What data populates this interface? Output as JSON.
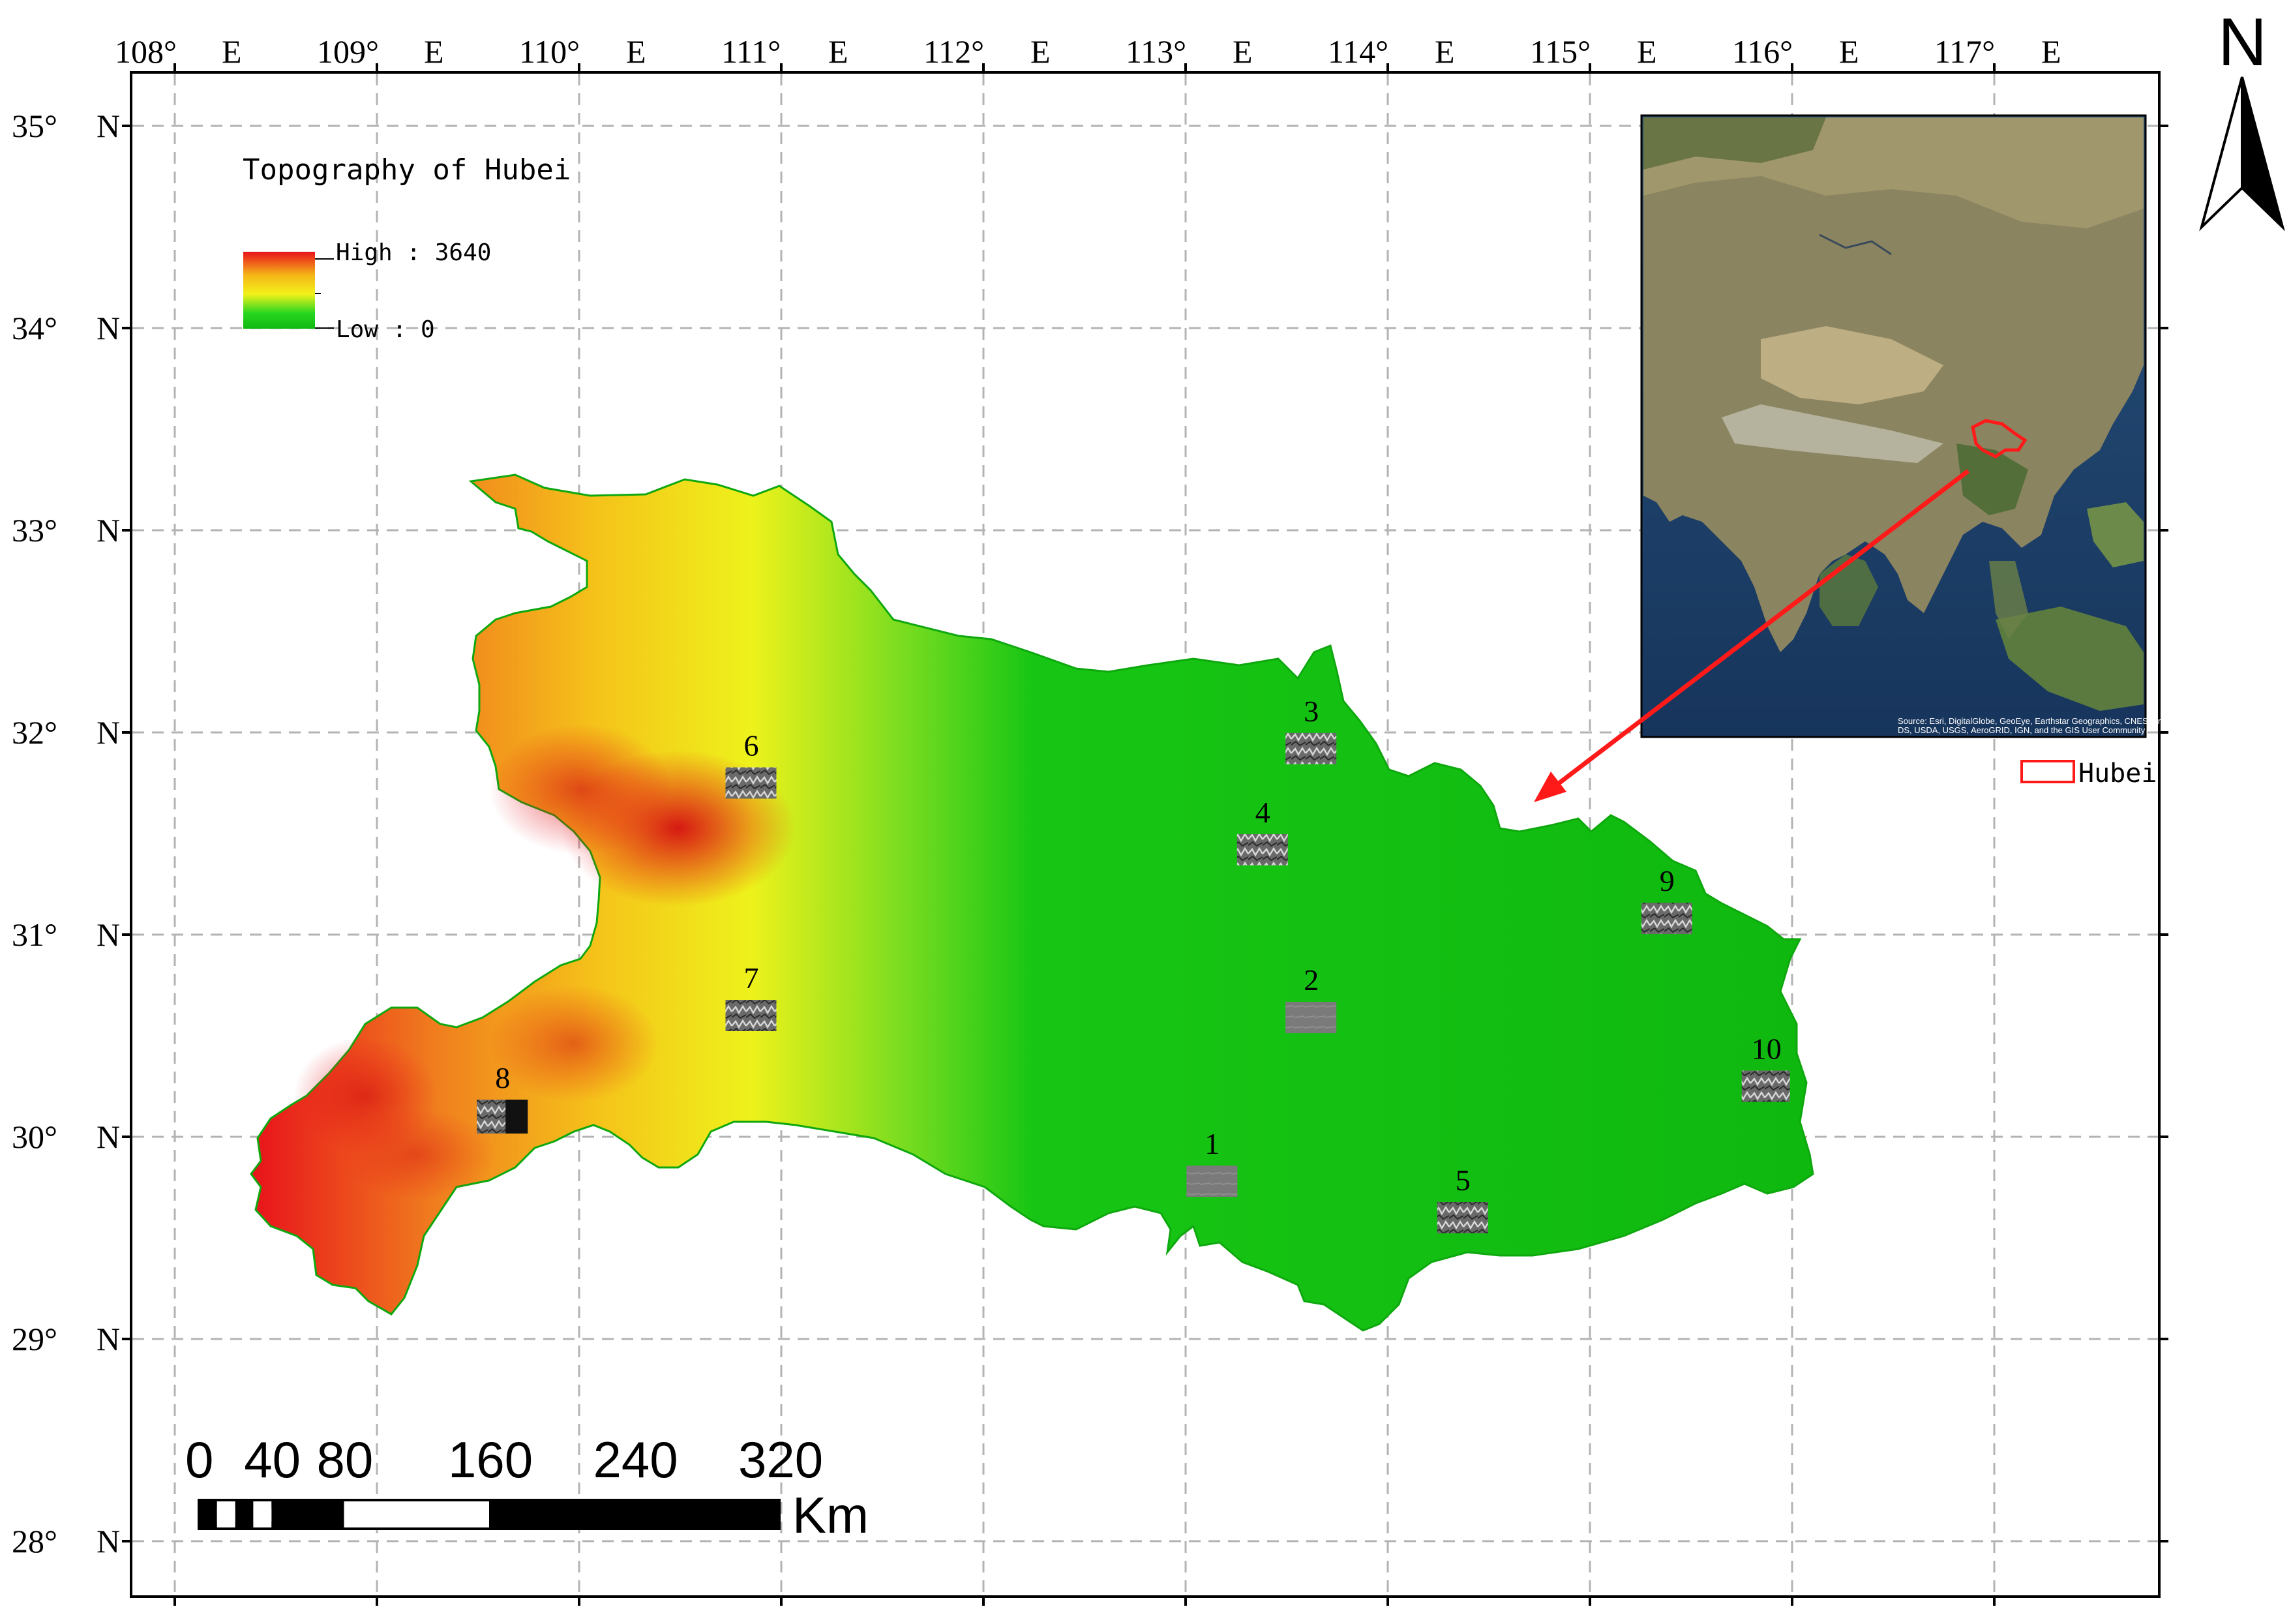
{
  "map": {
    "title": "Topography of Hubei",
    "legend": {
      "high_label": "High : 3640",
      "low_label": "Low : 0",
      "colors": [
        "#e8121b",
        "#f5b418",
        "#f2f21a",
        "#27d620",
        "#10b810"
      ]
    },
    "top_ticks": [
      "108°",
      "E",
      "109°",
      "E",
      "110°",
      "E",
      "111°",
      "E",
      "112°",
      "E",
      "113°",
      "E",
      "114°",
      "E",
      "115°",
      "E",
      "116°",
      "E",
      "117°",
      "E"
    ],
    "left_ticks": [
      {
        "deg": "35°",
        "dir": "N"
      },
      {
        "deg": "34°",
        "dir": "N"
      },
      {
        "deg": "33°",
        "dir": "N"
      },
      {
        "deg": "32°",
        "dir": "N"
      },
      {
        "deg": "31°",
        "dir": "N"
      },
      {
        "deg": "30°",
        "dir": "N"
      },
      {
        "deg": "29°",
        "dir": "N"
      },
      {
        "deg": "28°",
        "dir": "N"
      }
    ],
    "sites": [
      {
        "label": "1",
        "lon": 113.13,
        "lat": 29.78
      },
      {
        "label": "2",
        "lon": 113.62,
        "lat": 30.59
      },
      {
        "label": "3",
        "lon": 113.62,
        "lat": 31.92
      },
      {
        "label": "4",
        "lon": 113.38,
        "lat": 31.42
      },
      {
        "label": "5",
        "lon": 114.37,
        "lat": 29.6
      },
      {
        "label": "6",
        "lon": 110.85,
        "lat": 31.75
      },
      {
        "label": "7",
        "lon": 110.85,
        "lat": 30.6
      },
      {
        "label": "8",
        "lon": 109.62,
        "lat": 30.1
      },
      {
        "label": "9",
        "lon": 115.38,
        "lat": 31.08
      },
      {
        "label": "10",
        "lon": 115.87,
        "lat": 30.25
      }
    ],
    "scale_bar": {
      "labels": [
        "0",
        "40",
        "80",
        "160",
        "240",
        "320"
      ],
      "unit": "Km"
    },
    "north_label": "N",
    "inset": {
      "highlight_label": "Hubei",
      "credit_line1": "Source: Esri, DigitalGlobe, GeoEye, Earthstar Geographics, CNES/Airbus",
      "credit_line2": "DS, USDA, USGS, AeroGRID, IGN, and the GIS User Community"
    }
  }
}
